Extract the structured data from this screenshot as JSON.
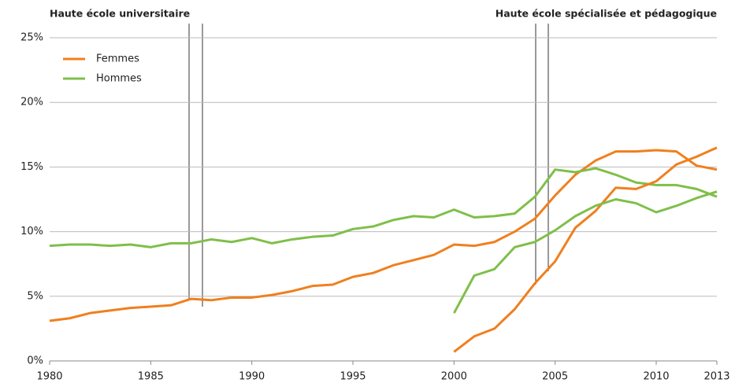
{
  "chart_data": {
    "type": "line",
    "annotations": [
      "Haute école universitaire",
      "Haute école spécialisée et pédagogique"
    ],
    "x": [
      1980,
      1981,
      1982,
      1983,
      1984,
      1985,
      1986,
      1987,
      1988,
      1989,
      1990,
      1991,
      1992,
      1993,
      1994,
      1995,
      1996,
      1997,
      1998,
      1999,
      2000,
      2001,
      2002,
      2003,
      2004,
      2005,
      2006,
      2007,
      2008,
      2009,
      2010,
      2011,
      2012,
      2013
    ],
    "series": [
      {
        "name": "Femmes",
        "color": "#f07f1e",
        "values": [
          3.1,
          3.3,
          3.7,
          3.9,
          4.1,
          4.2,
          4.3,
          4.8,
          4.7,
          4.9,
          4.9,
          5.1,
          5.4,
          5.8,
          5.9,
          6.5,
          6.8,
          7.4,
          7.8,
          8.2,
          9.0,
          8.9,
          9.2,
          10.0,
          11.0,
          12.8,
          14.4,
          15.5,
          16.2,
          16.2,
          16.3,
          16.2,
          15.1,
          14.8
        ]
      },
      {
        "name": "Hommes",
        "color": "#7fbf4a",
        "values": [
          8.9,
          9.0,
          9.0,
          8.9,
          9.0,
          8.8,
          9.1,
          9.1,
          9.4,
          9.2,
          9.5,
          9.1,
          9.4,
          9.6,
          9.7,
          10.2,
          10.4,
          10.9,
          11.2,
          11.1,
          11.7,
          11.1,
          11.2,
          11.4,
          12.7,
          14.8,
          14.6,
          14.9,
          14.4,
          13.8,
          13.6,
          13.6,
          13.3,
          12.7
        ]
      },
      {
        "color": "#f07f1e",
        "values": [
          null,
          null,
          null,
          null,
          null,
          null,
          null,
          null,
          null,
          null,
          null,
          null,
          null,
          null,
          null,
          null,
          null,
          null,
          null,
          null,
          0.7,
          1.9,
          2.5,
          4.0,
          6.0,
          7.7,
          10.3,
          11.6,
          13.4,
          13.3,
          13.9,
          15.2,
          15.8,
          16.5
        ]
      },
      {
        "color": "#7fbf4a",
        "values": [
          null,
          null,
          null,
          null,
          null,
          null,
          null,
          null,
          null,
          null,
          null,
          null,
          null,
          null,
          null,
          null,
          null,
          null,
          null,
          null,
          3.7,
          6.6,
          7.1,
          8.8,
          9.2,
          10.1,
          11.2,
          12.0,
          12.5,
          12.2,
          11.5,
          12.0,
          12.6,
          13.1
        ]
      }
    ],
    "xlim": [
      1980,
      2013
    ],
    "xticks": [
      1980,
      1985,
      1990,
      1995,
      2000,
      2005,
      2010,
      2013
    ],
    "ylim": [
      0,
      25
    ],
    "yticks": [
      {
        "value": 0,
        "label": "0%"
      },
      {
        "value": 5,
        "label": "5%"
      },
      {
        "value": 10,
        "label": "10%"
      },
      {
        "value": 15,
        "label": "15%"
      },
      {
        "value": 20,
        "label": "20%"
      },
      {
        "value": 25,
        "label": "25%"
      }
    ],
    "grid": true,
    "legend": "top-left"
  }
}
